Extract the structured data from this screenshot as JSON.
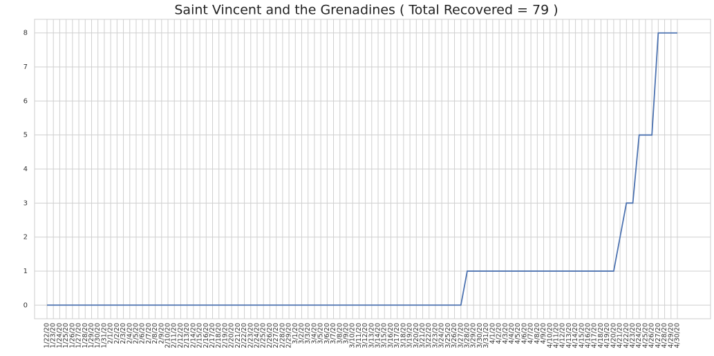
{
  "chart_data": {
    "type": "line",
    "title": "Saint Vincent and the Grenadines ( Total Recovered = 79 )",
    "categories": [
      "1/22/20",
      "1/23/20",
      "1/24/20",
      "1/25/20",
      "1/26/20",
      "1/27/20",
      "1/28/20",
      "1/29/20",
      "1/30/20",
      "1/31/20",
      "2/1/20",
      "2/2/20",
      "2/3/20",
      "2/4/20",
      "2/5/20",
      "2/6/20",
      "2/7/20",
      "2/8/20",
      "2/9/20",
      "2/10/20",
      "2/11/20",
      "2/12/20",
      "2/13/20",
      "2/14/20",
      "2/15/20",
      "2/16/20",
      "2/17/20",
      "2/18/20",
      "2/19/20",
      "2/20/20",
      "2/21/20",
      "2/22/20",
      "2/23/20",
      "2/24/20",
      "2/25/20",
      "2/26/20",
      "2/27/20",
      "2/28/20",
      "2/29/20",
      "3/1/20",
      "3/2/20",
      "3/3/20",
      "3/4/20",
      "3/5/20",
      "3/6/20",
      "3/7/20",
      "3/8/20",
      "3/9/20",
      "3/10/20",
      "3/11/20",
      "3/12/20",
      "3/13/20",
      "3/14/20",
      "3/15/20",
      "3/16/20",
      "3/17/20",
      "3/18/20",
      "3/19/20",
      "3/20/20",
      "3/21/20",
      "3/22/20",
      "3/23/20",
      "3/24/20",
      "3/25/20",
      "3/26/20",
      "3/27/20",
      "3/28/20",
      "3/29/20",
      "3/30/20",
      "3/31/20",
      "4/1/20",
      "4/2/20",
      "4/3/20",
      "4/4/20",
      "4/5/20",
      "4/6/20",
      "4/7/20",
      "4/8/20",
      "4/9/20",
      "4/10/20",
      "4/11/20",
      "4/12/20",
      "4/13/20",
      "4/14/20",
      "4/15/20",
      "4/16/20",
      "4/17/20",
      "4/18/20",
      "4/19/20",
      "4/20/20",
      "4/21/20",
      "4/22/20",
      "4/23/20",
      "4/24/20",
      "4/25/20",
      "4/26/20",
      "4/27/20",
      "4/28/20",
      "4/29/20",
      "4/30/20"
    ],
    "values": [
      0,
      0,
      0,
      0,
      0,
      0,
      0,
      0,
      0,
      0,
      0,
      0,
      0,
      0,
      0,
      0,
      0,
      0,
      0,
      0,
      0,
      0,
      0,
      0,
      0,
      0,
      0,
      0,
      0,
      0,
      0,
      0,
      0,
      0,
      0,
      0,
      0,
      0,
      0,
      0,
      0,
      0,
      0,
      0,
      0,
      0,
      0,
      0,
      0,
      0,
      0,
      0,
      0,
      0,
      0,
      0,
      0,
      0,
      0,
      0,
      0,
      0,
      0,
      0,
      0,
      0,
      1,
      1,
      1,
      1,
      1,
      1,
      1,
      1,
      1,
      1,
      1,
      1,
      1,
      1,
      1,
      1,
      1,
      1,
      1,
      1,
      1,
      1,
      1,
      1,
      2,
      3,
      3,
      5,
      5,
      5,
      8,
      8,
      8,
      8
    ],
    "color": "#4c72b0",
    "ylim": [
      -0.4,
      8.4
    ],
    "yticks": [
      0,
      1,
      2,
      3,
      4,
      5,
      6,
      7,
      8
    ],
    "grid": true
  }
}
